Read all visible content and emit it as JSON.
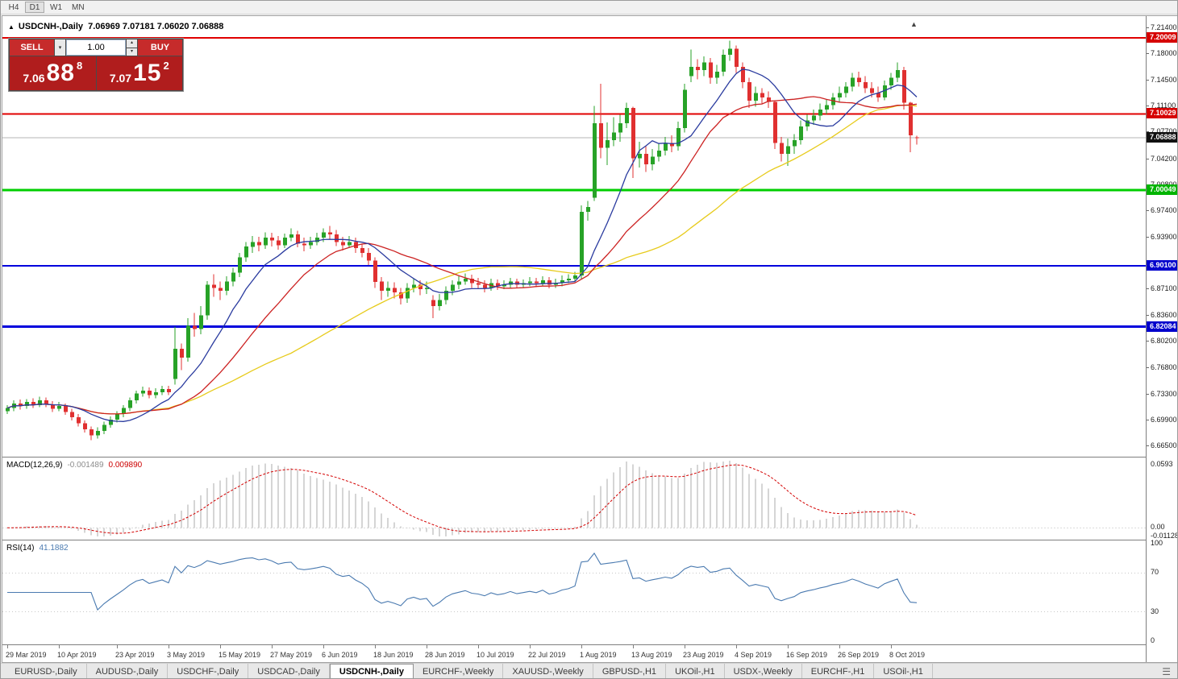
{
  "toolbar": {
    "timeframes": [
      {
        "label": "H4",
        "active": false
      },
      {
        "label": "D1",
        "active": true
      },
      {
        "label": "W1",
        "active": false
      },
      {
        "label": "MN",
        "active": false
      }
    ]
  },
  "chart": {
    "title_line": "USDCNH-,Daily  7.06969 7.07181 7.06020 7.06888",
    "symbol": "USDCNH-",
    "period": "Daily",
    "ohlc": {
      "open": "7.06969",
      "high": "7.07181",
      "low": "7.06020",
      "close": "7.06888"
    }
  },
  "trade": {
    "sell_label": "SELL",
    "buy_label": "BUY",
    "volume": "1.00",
    "sell_price": {
      "main": "7.06",
      "pips": "88",
      "frac": "8"
    },
    "buy_price": {
      "main": "7.07",
      "pips": "15",
      "frac": "2"
    }
  },
  "macd": {
    "label": "MACD(12,26,9)",
    "value_main": "-0.001489",
    "value_signal": "0.009890",
    "scale_top": "0.0593",
    "scale_zero": "0.00",
    "scale_bottom": "-0.01128"
  },
  "rsi": {
    "label": "RSI(14)",
    "value": "41.1882",
    "scale": [
      "100",
      "70",
      "30",
      "0"
    ]
  },
  "tabs": {
    "active_index": 4,
    "items": [
      "EURUSD-,Daily",
      "AUDUSD-,Daily",
      "USDCHF-,Daily",
      "USDCAD-,Daily",
      "USDCNH-,Daily",
      "EURCHF-,Weekly",
      "XAUUSD-,Weekly",
      "GBPUSD-,H1",
      "UKOil-,H1",
      "USDX-,Weekly",
      "EURCHF-,H1",
      "USOil-,H1"
    ]
  },
  "chart_data": {
    "type": "candlestick",
    "symbol": "USDCNH",
    "timeframe": "Daily",
    "current_price": 7.06888,
    "price_scale_labels": [
      "7.21400",
      "7.18000",
      "7.14500",
      "7.11100",
      "7.07700",
      "7.04200",
      "7.00800",
      "6.97400",
      "6.93900",
      "6.87100",
      "6.83600",
      "6.80200",
      "6.76800",
      "6.73300",
      "6.69900",
      "6.66500"
    ],
    "level_badges": [
      {
        "text": "7.20009",
        "price": 7.20009,
        "color": "#d60000"
      },
      {
        "text": "7.10029",
        "price": 7.10029,
        "color": "#d60000"
      },
      {
        "text": "7.06888",
        "price": 7.06888,
        "color": "#111111"
      },
      {
        "text": "7.00049",
        "price": 7.00049,
        "color": "#00b400"
      },
      {
        "text": "6.90100",
        "price": 6.901,
        "color": "#0000cc"
      },
      {
        "text": "6.82084",
        "price": 6.82084,
        "color": "#0000cc"
      }
    ],
    "hlines": [
      {
        "price": 7.20009,
        "color": "#e00000",
        "width": 2
      },
      {
        "price": 7.10029,
        "color": "#e00000",
        "width": 2
      },
      {
        "price": 7.06888,
        "color": "#b4b4b4",
        "width": 1
      },
      {
        "price": 7.00049,
        "color": "#00ce00",
        "width": 3
      },
      {
        "price": 6.901,
        "color": "#0000dd",
        "width": 2
      },
      {
        "price": 6.82084,
        "color": "#0000dd",
        "width": 3
      }
    ],
    "moving_averages": [
      {
        "period": 10,
        "color": "#2a3b9f"
      },
      {
        "period": 21,
        "color": "#cc2222"
      },
      {
        "period": 45,
        "color": "#e7cb1c"
      }
    ],
    "colors": {
      "up": "#27a227",
      "down": "#e03030"
    },
    "rsi_levels": [
      70,
      30
    ],
    "date_labels": [
      {
        "text": "29 Mar 2019",
        "i": 0
      },
      {
        "text": "10 Apr 2019",
        "i": 8
      },
      {
        "text": "23 Apr 2019",
        "i": 17
      },
      {
        "text": "3 May 2019",
        "i": 25
      },
      {
        "text": "15 May 2019",
        "i": 33
      },
      {
        "text": "27 May 2019",
        "i": 41
      },
      {
        "text": "6 Jun 2019",
        "i": 49
      },
      {
        "text": "18 Jun 2019",
        "i": 57
      },
      {
        "text": "28 Jun 2019",
        "i": 65
      },
      {
        "text": "10 Jul 2019",
        "i": 73
      },
      {
        "text": "22 Jul 2019",
        "i": 81
      },
      {
        "text": "1 Aug 2019",
        "i": 89
      },
      {
        "text": "13 Aug 2019",
        "i": 97
      },
      {
        "text": "23 Aug 2019",
        "i": 105
      },
      {
        "text": "4 Sep 2019",
        "i": 113
      },
      {
        "text": "16 Sep 2019",
        "i": 121
      },
      {
        "text": "26 Sep 2019",
        "i": 129
      },
      {
        "text": "8 Oct 2019",
        "i": 137
      }
    ],
    "candles": [
      [
        6.71,
        6.718,
        6.706,
        6.714
      ],
      [
        6.714,
        6.724,
        6.71,
        6.72
      ],
      [
        6.72,
        6.725,
        6.712,
        6.717
      ],
      [
        6.717,
        6.726,
        6.713,
        6.722
      ],
      [
        6.722,
        6.727,
        6.714,
        6.718
      ],
      [
        6.718,
        6.729,
        6.715,
        6.724
      ],
      [
        6.724,
        6.728,
        6.715,
        6.719
      ],
      [
        6.719,
        6.723,
        6.709,
        6.713
      ],
      [
        6.713,
        6.722,
        6.71,
        6.717
      ],
      [
        6.717,
        6.72,
        6.705,
        6.709
      ],
      [
        6.709,
        6.713,
        6.698,
        6.702
      ],
      [
        6.702,
        6.706,
        6.69,
        6.694
      ],
      [
        6.694,
        6.698,
        6.682,
        6.686
      ],
      [
        6.686,
        6.69,
        6.672,
        6.678
      ],
      [
        6.678,
        6.689,
        6.674,
        6.684
      ],
      [
        6.684,
        6.696,
        6.68,
        6.692
      ],
      [
        6.692,
        6.703,
        6.688,
        6.699
      ],
      [
        6.699,
        6.71,
        6.695,
        6.706
      ],
      [
        6.706,
        6.718,
        6.702,
        6.714
      ],
      [
        6.714,
        6.728,
        6.71,
        6.724
      ],
      [
        6.724,
        6.737,
        6.72,
        6.733
      ],
      [
        6.733,
        6.742,
        6.729,
        6.737
      ],
      [
        6.737,
        6.741,
        6.727,
        6.731
      ],
      [
        6.731,
        6.74,
        6.727,
        6.735
      ],
      [
        6.735,
        6.743,
        6.731,
        6.739
      ],
      [
        6.739,
        6.743,
        6.731,
        6.735
      ],
      [
        6.752,
        6.821,
        6.745,
        6.792
      ],
      [
        6.792,
        6.799,
        6.764,
        6.78
      ],
      [
        6.78,
        6.832,
        6.775,
        6.822
      ],
      [
        6.822,
        6.839,
        6.808,
        6.818
      ],
      [
        6.818,
        6.848,
        6.811,
        6.836
      ],
      [
        6.836,
        6.881,
        6.83,
        6.876
      ],
      [
        6.876,
        6.89,
        6.86,
        6.872
      ],
      [
        6.872,
        6.88,
        6.856,
        6.868
      ],
      [
        6.868,
        6.887,
        6.862,
        6.88
      ],
      [
        6.88,
        6.898,
        6.874,
        6.892
      ],
      [
        6.892,
        6.918,
        6.886,
        6.912
      ],
      [
        6.912,
        6.932,
        6.906,
        6.926
      ],
      [
        6.926,
        6.94,
        6.918,
        6.932
      ],
      [
        6.932,
        6.939,
        6.92,
        6.928
      ],
      [
        6.928,
        6.945,
        6.923,
        6.938
      ],
      [
        6.938,
        6.944,
        6.926,
        6.934
      ],
      [
        6.934,
        6.94,
        6.922,
        6.928
      ],
      [
        6.928,
        6.943,
        6.924,
        6.938
      ],
      [
        6.938,
        6.95,
        6.933,
        6.942
      ],
      [
        6.942,
        6.947,
        6.925,
        6.93
      ],
      [
        6.93,
        6.938,
        6.92,
        6.928
      ],
      [
        6.928,
        6.939,
        6.923,
        6.932
      ],
      [
        6.932,
        6.944,
        6.928,
        6.938
      ],
      [
        6.938,
        6.95,
        6.932,
        6.945
      ],
      [
        6.945,
        6.953,
        6.935,
        6.942
      ],
      [
        6.942,
        6.948,
        6.927,
        6.932
      ],
      [
        6.932,
        6.939,
        6.921,
        6.928
      ],
      [
        6.928,
        6.94,
        6.924,
        6.932
      ],
      [
        6.932,
        6.938,
        6.918,
        6.924
      ],
      [
        6.924,
        6.93,
        6.912,
        6.918
      ],
      [
        6.918,
        6.924,
        6.902,
        6.908
      ],
      [
        6.908,
        6.912,
        6.872,
        6.88
      ],
      [
        6.88,
        6.886,
        6.856,
        6.868
      ],
      [
        6.868,
        6.88,
        6.86,
        6.872
      ],
      [
        6.872,
        6.879,
        6.858,
        6.866
      ],
      [
        6.866,
        6.872,
        6.85,
        6.858
      ],
      [
        6.858,
        6.878,
        6.852,
        6.872
      ],
      [
        6.872,
        6.884,
        6.866,
        6.876
      ],
      [
        6.876,
        6.882,
        6.862,
        6.87
      ],
      [
        6.87,
        6.88,
        6.864,
        6.872
      ],
      [
        6.856,
        6.862,
        6.832,
        6.848
      ],
      [
        6.848,
        6.864,
        6.842,
        6.856
      ],
      [
        6.856,
        6.874,
        6.85,
        6.868
      ],
      [
        6.868,
        6.882,
        6.862,
        6.876
      ],
      [
        6.876,
        6.887,
        6.87,
        6.88
      ],
      [
        6.88,
        6.891,
        6.876,
        6.884
      ],
      [
        6.884,
        6.889,
        6.872,
        6.878
      ],
      [
        6.878,
        6.885,
        6.87,
        6.876
      ],
      [
        6.876,
        6.882,
        6.866,
        6.872
      ],
      [
        6.872,
        6.884,
        6.868,
        6.878
      ],
      [
        6.878,
        6.883,
        6.869,
        6.874
      ],
      [
        6.874,
        6.882,
        6.87,
        6.876
      ],
      [
        6.876,
        6.885,
        6.872,
        6.88
      ],
      [
        6.88,
        6.884,
        6.871,
        6.876
      ],
      [
        6.876,
        6.883,
        6.872,
        6.878
      ],
      [
        6.878,
        6.886,
        6.874,
        6.88
      ],
      [
        6.88,
        6.885,
        6.873,
        6.878
      ],
      [
        6.878,
        6.887,
        6.874,
        6.882
      ],
      [
        6.882,
        6.886,
        6.871,
        6.876
      ],
      [
        6.876,
        6.884,
        6.872,
        6.878
      ],
      [
        6.878,
        6.888,
        6.874,
        6.882
      ],
      [
        6.882,
        6.89,
        6.878,
        6.884
      ],
      [
        6.884,
        6.893,
        6.88,
        6.888
      ],
      [
        6.888,
        6.98,
        6.884,
        6.972
      ],
      [
        6.972,
        6.986,
        6.96,
        6.978
      ],
      [
        6.99,
        7.111,
        6.986,
        7.088
      ],
      [
        7.088,
        7.14,
        7.042,
        7.056
      ],
      [
        7.056,
        7.089,
        7.033,
        7.066
      ],
      [
        7.066,
        7.096,
        7.058,
        7.076
      ],
      [
        7.076,
        7.099,
        7.064,
        7.088
      ],
      [
        7.088,
        7.115,
        7.082,
        7.108
      ],
      [
        7.108,
        7.11,
        7.016,
        7.042
      ],
      [
        7.042,
        7.064,
        7.03,
        7.048
      ],
      [
        7.048,
        7.058,
        7.024,
        7.034
      ],
      [
        7.034,
        7.054,
        7.026,
        7.044
      ],
      [
        7.044,
        7.062,
        7.038,
        7.052
      ],
      [
        7.052,
        7.07,
        7.046,
        7.062
      ],
      [
        7.062,
        7.072,
        7.05,
        7.058
      ],
      [
        7.058,
        7.09,
        7.052,
        7.082
      ],
      [
        7.082,
        7.14,
        7.076,
        7.132
      ],
      [
        7.15,
        7.185,
        7.142,
        7.162
      ],
      [
        7.162,
        7.172,
        7.146,
        7.158
      ],
      [
        7.158,
        7.176,
        7.15,
        7.168
      ],
      [
        7.168,
        7.174,
        7.14,
        7.148
      ],
      [
        7.148,
        7.165,
        7.14,
        7.156
      ],
      [
        7.156,
        7.185,
        7.15,
        7.178
      ],
      [
        7.178,
        7.1965,
        7.17,
        7.186
      ],
      [
        7.186,
        7.19,
        7.154,
        7.162
      ],
      [
        7.162,
        7.168,
        7.134,
        7.142
      ],
      [
        7.142,
        7.148,
        7.108,
        7.118
      ],
      [
        7.118,
        7.136,
        7.11,
        7.128
      ],
      [
        7.128,
        7.134,
        7.114,
        7.122
      ],
      [
        7.122,
        7.13,
        7.108,
        7.116
      ],
      [
        7.116,
        7.118,
        7.054,
        7.062
      ],
      [
        7.062,
        7.07,
        7.038,
        7.048
      ],
      [
        7.048,
        7.068,
        7.032,
        7.058
      ],
      [
        7.058,
        7.074,
        7.048,
        7.066
      ],
      [
        7.066,
        7.092,
        7.06,
        7.084
      ],
      [
        7.084,
        7.1,
        7.078,
        7.092
      ],
      [
        7.092,
        7.106,
        7.086,
        7.098
      ],
      [
        7.098,
        7.114,
        7.092,
        7.106
      ],
      [
        7.106,
        7.12,
        7.1,
        7.112
      ],
      [
        7.112,
        7.128,
        7.106,
        7.122
      ],
      [
        7.122,
        7.136,
        7.116,
        7.128
      ],
      [
        7.128,
        7.142,
        7.122,
        7.136
      ],
      [
        7.136,
        7.154,
        7.13,
        7.148
      ],
      [
        7.148,
        7.156,
        7.136,
        7.142
      ],
      [
        7.142,
        7.15,
        7.128,
        7.134
      ],
      [
        7.134,
        7.142,
        7.122,
        7.128
      ],
      [
        7.128,
        7.136,
        7.116,
        7.122
      ],
      [
        7.122,
        7.144,
        7.118,
        7.138
      ],
      [
        7.138,
        7.154,
        7.132,
        7.148
      ],
      [
        7.148,
        7.168,
        7.142,
        7.158
      ],
      [
        7.158,
        7.162,
        7.106,
        7.115
      ],
      [
        7.115,
        7.116,
        7.05,
        7.072
      ],
      [
        7.0697,
        7.0718,
        7.0602,
        7.0689
      ]
    ]
  }
}
